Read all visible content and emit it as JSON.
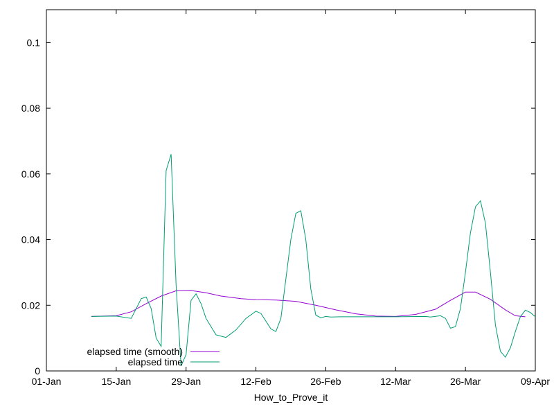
{
  "chart_data": {
    "type": "line",
    "title": "",
    "xlabel": "How_to_Prove_it",
    "ylabel": "",
    "x_axis": {
      "type": "date",
      "range": [
        "2023-01-01",
        "2023-04-09"
      ],
      "ticks": [
        "2023-01-01",
        "2023-01-15",
        "2023-01-29",
        "2023-02-12",
        "2023-02-26",
        "2023-03-12",
        "2023-03-26",
        "2023-04-09"
      ],
      "tick_labels": [
        "01-Jan",
        "15-Jan",
        "29-Jan",
        "12-Feb",
        "26-Feb",
        "12-Mar",
        "26-Mar",
        "09-Apr"
      ]
    },
    "y_axis": {
      "range": [
        0,
        0.11
      ],
      "ticks": [
        0,
        0.02,
        0.04,
        0.06,
        0.08,
        0.1
      ],
      "tick_labels": [
        "0",
        "0.02",
        "0.04",
        "0.06",
        "0.08",
        "0.1"
      ]
    },
    "grid": false,
    "legend_position": "bottom-left",
    "series": [
      {
        "name": "elapsed time (smooth)",
        "color": "#9400d3",
        "points": [
          [
            "2023-01-10",
            0.0166
          ],
          [
            "2023-01-15",
            0.0168
          ],
          [
            "2023-01-18",
            0.018
          ],
          [
            "2023-01-21",
            0.0205
          ],
          [
            "2023-01-24",
            0.0228
          ],
          [
            "2023-01-27",
            0.0244
          ],
          [
            "2023-01-30",
            0.0245
          ],
          [
            "2023-02-02",
            0.0238
          ],
          [
            "2023-02-05",
            0.0228
          ],
          [
            "2023-02-09",
            0.022
          ],
          [
            "2023-02-12",
            0.0217
          ],
          [
            "2023-02-16",
            0.0216
          ],
          [
            "2023-02-20",
            0.0212
          ],
          [
            "2023-02-24",
            0.02
          ],
          [
            "2023-02-28",
            0.0186
          ],
          [
            "2023-03-04",
            0.0174
          ],
          [
            "2023-03-08",
            0.0167
          ],
          [
            "2023-03-12",
            0.0166
          ],
          [
            "2023-03-16",
            0.0172
          ],
          [
            "2023-03-20",
            0.0188
          ],
          [
            "2023-03-23",
            0.0215
          ],
          [
            "2023-03-26",
            0.024
          ],
          [
            "2023-03-28",
            0.024
          ],
          [
            "2023-03-31",
            0.0218
          ],
          [
            "2023-04-03",
            0.0186
          ],
          [
            "2023-04-05",
            0.0168
          ],
          [
            "2023-04-07",
            0.0165
          ]
        ]
      },
      {
        "name": "elapsed time",
        "color": "#009e73",
        "points": [
          [
            "2023-01-10",
            0.0166
          ],
          [
            "2023-01-15",
            0.0167
          ],
          [
            "2023-01-18",
            0.016
          ],
          [
            "2023-01-20",
            0.022
          ],
          [
            "2023-01-21",
            0.0225
          ],
          [
            "2023-01-22",
            0.019
          ],
          [
            "2023-01-23",
            0.01
          ],
          [
            "2023-01-24",
            0.0075
          ],
          [
            "2023-01-25",
            0.061
          ],
          [
            "2023-01-26",
            0.066
          ],
          [
            "2023-01-27",
            0.026
          ],
          [
            "2023-01-28",
            0.0015
          ],
          [
            "2023-01-29",
            0.005
          ],
          [
            "2023-01-30",
            0.0215
          ],
          [
            "2023-01-31",
            0.0235
          ],
          [
            "2023-02-01",
            0.0205
          ],
          [
            "2023-02-02",
            0.016
          ],
          [
            "2023-02-04",
            0.011
          ],
          [
            "2023-02-06",
            0.0102
          ],
          [
            "2023-02-08",
            0.0125
          ],
          [
            "2023-02-10",
            0.016
          ],
          [
            "2023-02-12",
            0.0182
          ],
          [
            "2023-02-13",
            0.0175
          ],
          [
            "2023-02-15",
            0.0128
          ],
          [
            "2023-02-16",
            0.012
          ],
          [
            "2023-02-17",
            0.016
          ],
          [
            "2023-02-18",
            0.028
          ],
          [
            "2023-02-19",
            0.04
          ],
          [
            "2023-02-20",
            0.048
          ],
          [
            "2023-02-21",
            0.0488
          ],
          [
            "2023-02-22",
            0.04
          ],
          [
            "2023-02-23",
            0.025
          ],
          [
            "2023-02-24",
            0.017
          ],
          [
            "2023-02-25",
            0.0162
          ],
          [
            "2023-02-26",
            0.0166
          ],
          [
            "2023-02-27",
            0.0164
          ],
          [
            "2023-03-01",
            0.0165
          ],
          [
            "2023-03-12",
            0.0165
          ],
          [
            "2023-03-18",
            0.0166
          ],
          [
            "2023-03-19",
            0.0164
          ],
          [
            "2023-03-21",
            0.0168
          ],
          [
            "2023-03-22",
            0.016
          ],
          [
            "2023-03-23",
            0.013
          ],
          [
            "2023-03-24",
            0.0135
          ],
          [
            "2023-03-25",
            0.019
          ],
          [
            "2023-03-26",
            0.03
          ],
          [
            "2023-03-27",
            0.042
          ],
          [
            "2023-03-28",
            0.05
          ],
          [
            "2023-03-29",
            0.0518
          ],
          [
            "2023-03-30",
            0.045
          ],
          [
            "2023-03-31",
            0.03
          ],
          [
            "2023-04-01",
            0.014
          ],
          [
            "2023-04-02",
            0.006
          ],
          [
            "2023-04-03",
            0.0042
          ],
          [
            "2023-04-04",
            0.007
          ],
          [
            "2023-04-05",
            0.012
          ],
          [
            "2023-04-06",
            0.0165
          ],
          [
            "2023-04-07",
            0.0185
          ],
          [
            "2023-04-08",
            0.0178
          ],
          [
            "2023-04-09",
            0.0165
          ]
        ]
      }
    ]
  }
}
